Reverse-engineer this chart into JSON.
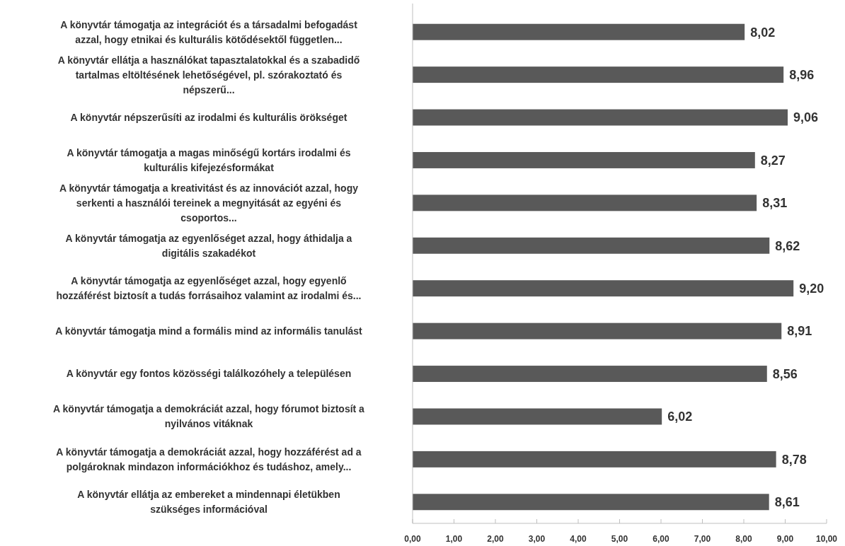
{
  "chart_data": {
    "type": "bar",
    "orientation": "horizontal",
    "categories": [
      "A könyvtár támogatja az integrációt és a társadalmi befogadást azzal, hogy etnikai és kulturális kötődésektől független...",
      "A könyvtár ellátja a használókat tapasztalatokkal és a szabadidő tartalmas eltöltésének lehetőségével, pl. szórakoztató és népszerű...",
      "A könyvtár népszerűsíti az irodalmi és kulturális örökséget",
      "A könyvtár támogatja a magas minőségű kortárs irodalmi és kulturális kifejezésformákat",
      "A könyvtár támogatja a kreativitást és az innovációt azzal, hogy serkenti a használói tereinek a megnyitását az egyéni és csoportos...",
      "A könyvtár támogatja az egyenlőséget azzal, hogy áthidalja a digitális szakadékot",
      "A könyvtár támogatja az egyenlőséget azzal, hogy egyenlő hozzáférést biztosít a tudás forrásaihoz valamint az irodalmi és...",
      "A könyvtár támogatja mind a formális mind az informális tanulást",
      "A könyvtár egy fontos közösségi találkozóhely a településen",
      "A könyvtár támogatja a demokráciát azzal, hogy fórumot biztosít a nyilvános vitáknak",
      "A könyvtár támogatja a demokráciát azzal, hogy hozzáférést ad a polgároknak mindazon információkhoz és tudáshoz, amely...",
      "A könyvtár ellátja az embereket a mindennapi életükben szükséges információval"
    ],
    "values": [
      8.02,
      8.96,
      9.06,
      8.27,
      8.31,
      8.62,
      9.2,
      8.91,
      8.56,
      6.02,
      8.78,
      8.61
    ],
    "value_labels": [
      "8,02",
      "8,96",
      "9,06",
      "8,27",
      "8,31",
      "8,62",
      "9,20",
      "8,91",
      "8,56",
      "6,02",
      "8,78",
      "8,61"
    ],
    "color": "#595959",
    "xlim": [
      0,
      10
    ],
    "xticks": [
      {
        "value": 0,
        "label": "0,00"
      },
      {
        "value": 1,
        "label": "1,00"
      },
      {
        "value": 2,
        "label": "2,00"
      },
      {
        "value": 3,
        "label": "3,00"
      },
      {
        "value": 4,
        "label": "4,00"
      },
      {
        "value": 5,
        "label": "5,00"
      },
      {
        "value": 6,
        "label": "6,00"
      },
      {
        "value": 7,
        "label": "7,00"
      },
      {
        "value": 8,
        "label": "8,00"
      },
      {
        "value": 9,
        "label": "9,00"
      },
      {
        "value": 10,
        "label": "10,00"
      }
    ],
    "grid": false
  }
}
